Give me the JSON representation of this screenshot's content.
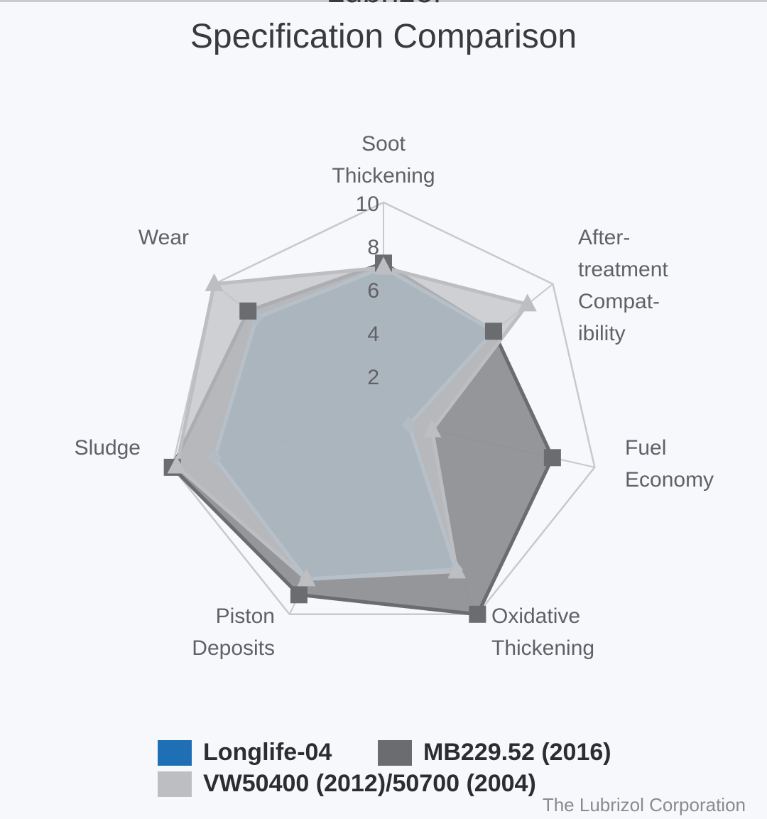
{
  "header": {
    "title_partial": "Lubrizol",
    "title": "Specification Comparison"
  },
  "colors": {
    "background": "#f7f8fc",
    "grid": "#c8c9cd",
    "text": "#606066"
  },
  "chart_data": {
    "type": "radar",
    "title": "Specification Comparison",
    "axes": [
      [
        "Soot",
        "Thickening"
      ],
      [
        "After-",
        "treatment",
        "Compat-",
        "ibility"
      ],
      [
        "Fuel",
        "Economy"
      ],
      [
        "Oxidative",
        "Thickening"
      ],
      [
        "Piston",
        "Deposits"
      ],
      [
        "Sludge"
      ],
      [
        "Wear"
      ]
    ],
    "rlim": [
      0,
      10
    ],
    "ticks": [
      2,
      4,
      6,
      8,
      10
    ],
    "grid": true,
    "legend_position": "bottom",
    "series": [
      {
        "name": "Longlife-04",
        "color": "#1f6fb4",
        "marker": "diamond",
        "values": [
          7,
          6.5,
          1.2,
          7.7,
          8.2,
          8,
          7.5
        ]
      },
      {
        "name": "MB229.52 (2016)",
        "color": "#6b6c70",
        "marker": "square",
        "values": [
          7.2,
          6.5,
          8,
          10,
          9,
          10,
          8
        ]
      },
      {
        "name": "VW50400 (2012)/50700 (2004)",
        "color": "#bdbec2",
        "marker": "triangle",
        "values": [
          7,
          8.5,
          2.3,
          7.8,
          8.2,
          9.8,
          10
        ]
      }
    ]
  },
  "credit": "The Lubrizol Corporation"
}
